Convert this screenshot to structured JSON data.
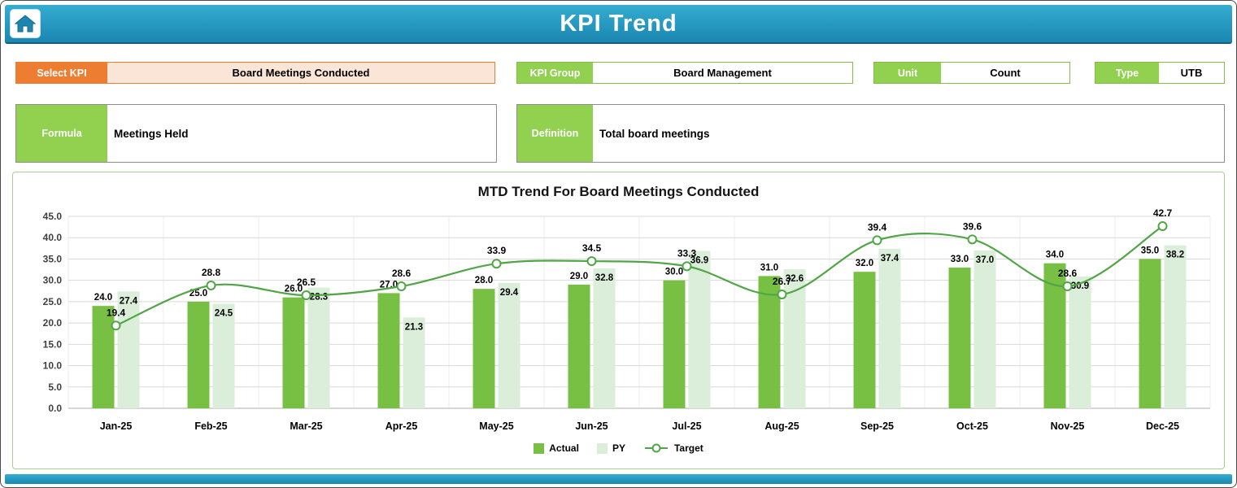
{
  "header": {
    "title": "KPI Trend",
    "home_icon": "home-icon"
  },
  "controls": {
    "select_kpi": {
      "label": "Select KPI",
      "value": "Board Meetings Conducted"
    },
    "kpi_group": {
      "label": "KPI Group",
      "value": "Board Management"
    },
    "unit": {
      "label": "Unit",
      "value": "Count"
    },
    "type": {
      "label": "Type",
      "value": "UTB"
    }
  },
  "details": {
    "formula": {
      "label": "Formula",
      "value": "Meetings Held"
    },
    "definition": {
      "label": "Definition",
      "value": "Total board meetings"
    }
  },
  "chart_data": {
    "type": "bar",
    "title": "MTD Trend For Board Meetings Conducted",
    "categories": [
      "Jan-25",
      "Feb-25",
      "Mar-25",
      "Apr-25",
      "May-25",
      "Jun-25",
      "Jul-25",
      "Aug-25",
      "Sep-25",
      "Oct-25",
      "Nov-25",
      "Dec-25"
    ],
    "series": [
      {
        "name": "Actual",
        "type": "bar",
        "color": "#77C044",
        "values": [
          24.0,
          25.0,
          26.0,
          27.0,
          28.0,
          29.0,
          30.0,
          31.0,
          32.0,
          33.0,
          34.0,
          35.0
        ]
      },
      {
        "name": "PY",
        "type": "bar",
        "color": "#DBEEDA",
        "values": [
          27.4,
          24.5,
          28.3,
          21.3,
          29.4,
          32.8,
          36.9,
          32.6,
          37.4,
          37.0,
          30.9,
          38.2
        ]
      },
      {
        "name": "Target",
        "type": "line",
        "color": "#50A546",
        "values": [
          19.4,
          28.8,
          26.5,
          28.6,
          33.9,
          34.5,
          33.3,
          26.7,
          39.4,
          39.6,
          28.6,
          42.7
        ]
      }
    ],
    "xlabel": "",
    "ylabel": "",
    "ylim": [
      0,
      45
    ],
    "ytick_step": 5,
    "grid": true,
    "legend_position": "bottom"
  },
  "colors": {
    "header_teal": "#1F8FB8",
    "accent_orange": "#ED7D31",
    "accent_orange_light": "#FBE5D6",
    "accent_green": "#92D050",
    "chart_border_green": "#A9D18E",
    "gridline": "#D9D9D9"
  }
}
